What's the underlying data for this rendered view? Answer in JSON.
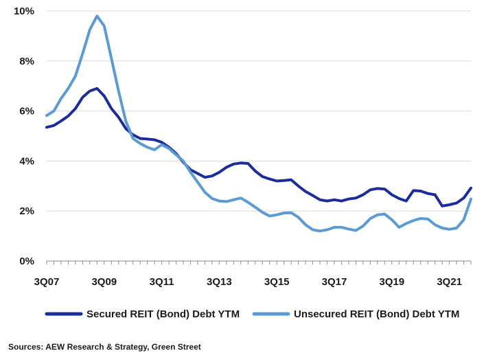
{
  "chart_data": {
    "type": "line",
    "x": [
      "3Q07",
      "4Q07",
      "1Q08",
      "2Q08",
      "3Q08",
      "4Q08",
      "1Q09",
      "2Q09",
      "3Q09",
      "4Q09",
      "1Q10",
      "2Q10",
      "3Q10",
      "4Q10",
      "1Q11",
      "2Q11",
      "3Q11",
      "4Q11",
      "1Q12",
      "2Q12",
      "3Q12",
      "4Q12",
      "1Q13",
      "2Q13",
      "3Q13",
      "4Q13",
      "1Q14",
      "2Q14",
      "3Q14",
      "4Q14",
      "1Q15",
      "2Q15",
      "3Q15",
      "4Q15",
      "1Q16",
      "2Q16",
      "3Q16",
      "4Q16",
      "1Q17",
      "2Q17",
      "3Q17",
      "4Q17",
      "1Q18",
      "2Q18",
      "3Q18",
      "4Q18",
      "1Q19",
      "2Q19",
      "3Q19",
      "4Q19",
      "1Q20",
      "2Q20",
      "3Q20",
      "4Q20",
      "1Q21",
      "2Q21",
      "3Q21",
      "4Q21",
      "1Q22",
      "2Q22"
    ],
    "x_tick_labels": [
      "3Q07",
      "3Q09",
      "3Q11",
      "3Q13",
      "3Q15",
      "3Q17",
      "3Q19",
      "3Q21"
    ],
    "series": [
      {
        "name": "Secured REIT (Bond) Debt YTM",
        "color": "#1b2c9c",
        "values": [
          5.35,
          5.42,
          5.6,
          5.8,
          6.1,
          6.55,
          6.8,
          6.9,
          6.6,
          6.1,
          5.75,
          5.3,
          5.05,
          4.9,
          4.88,
          4.85,
          4.75,
          4.55,
          4.3,
          3.95,
          3.65,
          3.5,
          3.35,
          3.4,
          3.55,
          3.75,
          3.88,
          3.92,
          3.9,
          3.6,
          3.38,
          3.28,
          3.2,
          3.22,
          3.25,
          3.0,
          2.78,
          2.62,
          2.45,
          2.4,
          2.45,
          2.4,
          2.48,
          2.52,
          2.65,
          2.85,
          2.9,
          2.88,
          2.65,
          2.5,
          2.4,
          2.82,
          2.8,
          2.7,
          2.65,
          2.2,
          2.25,
          2.32,
          2.52,
          2.92
        ]
      },
      {
        "name": "Unsecured REIT (Bond) Debt YTM",
        "color": "#5b9bd5",
        "values": [
          5.82,
          6.0,
          6.5,
          6.9,
          7.4,
          8.3,
          9.25,
          9.8,
          9.4,
          8.1,
          6.8,
          5.6,
          4.9,
          4.7,
          4.55,
          4.45,
          4.65,
          4.5,
          4.25,
          4.0,
          3.55,
          3.15,
          2.75,
          2.5,
          2.4,
          2.38,
          2.45,
          2.52,
          2.35,
          2.15,
          1.95,
          1.8,
          1.85,
          1.92,
          1.93,
          1.75,
          1.45,
          1.25,
          1.2,
          1.25,
          1.35,
          1.35,
          1.28,
          1.22,
          1.4,
          1.7,
          1.85,
          1.88,
          1.65,
          1.35,
          1.5,
          1.62,
          1.7,
          1.68,
          1.45,
          1.32,
          1.27,
          1.32,
          1.65,
          2.48
        ]
      }
    ],
    "y_ticks": [
      "0%",
      "2%",
      "4%",
      "6%",
      "8%",
      "10%"
    ],
    "ylim": [
      0,
      10
    ],
    "grid": "horizontal",
    "legend_placement": "bottom",
    "title": "",
    "xlabel": "",
    "ylabel": ""
  },
  "source_note": "Sources: AEW Research & Strategy, Green Street",
  "colors": {
    "gridline": "#d9d9d9",
    "axis": "#888888"
  }
}
